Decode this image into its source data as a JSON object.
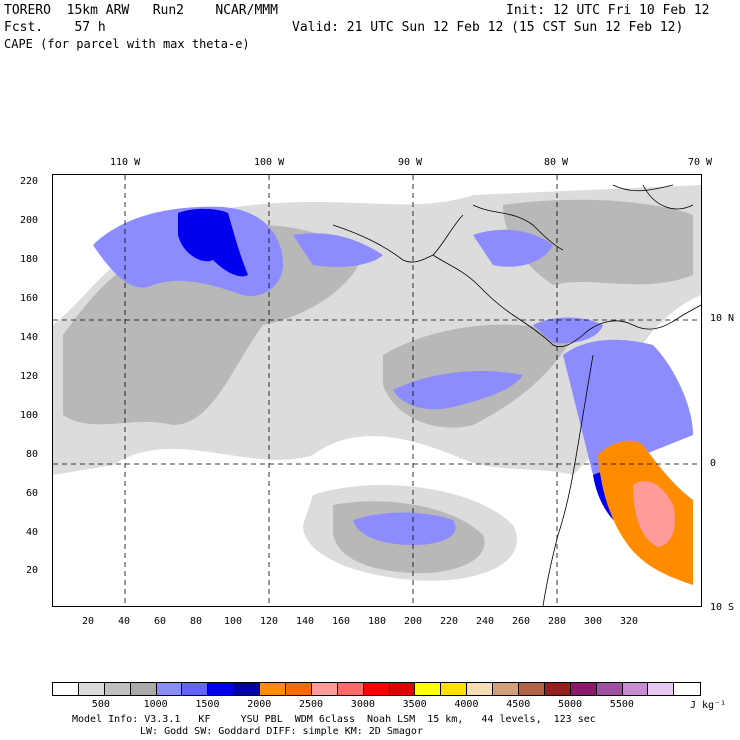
{
  "header": {
    "model": "TORERO  15km ARW   Run2    NCAR/MMM",
    "init": "Init: 12 UTC Fri 10 Feb 12",
    "forecast": "Fcst.    57 h",
    "valid": "Valid: 21 UTC Sun 12 Feb 12 (15 CST Sun 12 Feb 12)",
    "field": "CAPE (for parcel with max theta-e)"
  },
  "axes": {
    "x_ticks": [
      "20",
      "40",
      "60",
      "80",
      "100",
      "120",
      "140",
      "160",
      "180",
      "200",
      "220",
      "240",
      "260",
      "280",
      "300",
      "320"
    ],
    "y_ticks": [
      "20",
      "40",
      "60",
      "80",
      "100",
      "120",
      "140",
      "160",
      "180",
      "200",
      "220"
    ],
    "lon_labels": [
      "110 W",
      "100 W",
      "90 W",
      "80 W",
      "70 W"
    ],
    "lat_labels": [
      "10 N",
      "0",
      "10 S"
    ]
  },
  "colorbar": {
    "colors": [
      "#ffffff",
      "#dcdcdc",
      "#c0c0c0",
      "#aaaaaa",
      "#8c8cff",
      "#6464ff",
      "#0000ee",
      "#0000aa",
      "#ff8c00",
      "#ff6a00",
      "#ff9b9b",
      "#ff6a6a",
      "#ff0000",
      "#e00000",
      "#ffff00",
      "#ffe000",
      "#f5deb3",
      "#d2a07a",
      "#b46446",
      "#961e1e",
      "#8b1a6b",
      "#a050a0",
      "#c88cd2",
      "#e6c8f0",
      "#ffffff"
    ],
    "labels": [
      "500",
      "1000",
      "1500",
      "2000",
      "2500",
      "3000",
      "3500",
      "4000",
      "4500",
      "5000",
      "5500"
    ],
    "unit": "J kg⁻¹"
  },
  "footer": {
    "line1": "Model Info: V3.3.1   KF     YSU PBL  WDM 6class  Noah LSM  15 km,   44 levels,  123 sec",
    "line2": "LW: Godd SW: Goddard DIFF: simple KM: 2D Smagor"
  }
}
